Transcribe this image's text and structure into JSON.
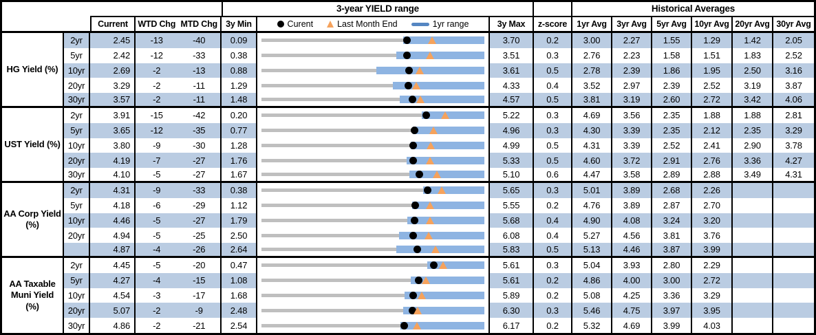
{
  "colors": {
    "border": "#000000",
    "stripe_blue": "#BACCE2",
    "bar_1yr_range": "#8EB4E2",
    "track_3yr_range": "#BFBFBF",
    "last_month_end_triangle": "#F5A25C",
    "legend_bar_glyph": "#5586C2",
    "text": "#000000",
    "background": "#FFFFFF"
  },
  "chart_data": {
    "type": "table",
    "embedded_chart": "per-row bullet/range chart: gray track spans 3y Min to 3y Max, blue bar = 1yr range, black dot = Current yield, orange triangle = Last Month End yield (values in %)",
    "headers": {
      "yield_range": "3-year YIELD range",
      "historical_averages": "Historical Averages"
    },
    "columns": {
      "current": "Current",
      "wtd_chg": "WTD Chg",
      "mtd_chg": "MTD Chg",
      "min_3y": "3y Min",
      "max_3y": "3y Max",
      "z_score": "z-score",
      "averages": [
        "1yr Avg",
        "3yr Avg",
        "5yr Avg",
        "10yr Avg",
        "20yr Avg",
        "30yr Avg"
      ]
    },
    "legend": {
      "current": "Curent",
      "last_month_end": "Last Month End",
      "range_1yr": "1yr range"
    },
    "sections": [
      {
        "label": "HG Yield (%)",
        "rows": [
          {
            "tenor": "2yr",
            "current": "2.45",
            "wtd_chg": "-13",
            "mtd_chg": "-40",
            "min_3y": "0.09",
            "max_3y": "3.70",
            "z_score": "0.2",
            "averages": [
              "3.00",
              "2.27",
              "1.55",
              "1.29",
              "1.42",
              "2.05"
            ],
            "last_month_end": 2.85,
            "range_1yr": [
              2.38,
              3.7
            ]
          },
          {
            "tenor": "5yr",
            "current": "2.42",
            "wtd_chg": "-12",
            "mtd_chg": "-33",
            "min_3y": "0.38",
            "max_3y": "3.51",
            "z_score": "0.3",
            "averages": [
              "2.76",
              "2.23",
              "1.58",
              "1.51",
              "1.83",
              "2.52"
            ],
            "last_month_end": 2.75,
            "range_1yr": [
              2.27,
              3.51
            ]
          },
          {
            "tenor": "10yr",
            "current": "2.69",
            "wtd_chg": "-2",
            "mtd_chg": "-13",
            "min_3y": "0.88",
            "max_3y": "3.61",
            "z_score": "0.5",
            "averages": [
              "2.78",
              "2.39",
              "1.86",
              "1.95",
              "2.50",
              "3.16"
            ],
            "last_month_end": 2.82,
            "range_1yr": [
              2.29,
              3.61
            ]
          },
          {
            "tenor": "20yr",
            "current": "3.29",
            "wtd_chg": "-2",
            "mtd_chg": "-11",
            "min_3y": "1.29",
            "max_3y": "4.33",
            "z_score": "0.4",
            "averages": [
              "3.52",
              "2.97",
              "2.39",
              "2.52",
              "3.19",
              "3.87"
            ],
            "last_month_end": 3.4,
            "range_1yr": [
              3.08,
              4.33
            ]
          },
          {
            "tenor": "30yr",
            "current": "3.57",
            "wtd_chg": "-2",
            "mtd_chg": "-11",
            "min_3y": "1.48",
            "max_3y": "4.57",
            "z_score": "0.5",
            "averages": [
              "3.81",
              "3.19",
              "2.60",
              "2.72",
              "3.42",
              "4.06"
            ],
            "last_month_end": 3.68,
            "range_1yr": [
              3.4,
              4.57
            ]
          }
        ]
      },
      {
        "label": "UST Yield (%)",
        "rows": [
          {
            "tenor": "2yr",
            "current": "3.91",
            "wtd_chg": "-15",
            "mtd_chg": "-42",
            "min_3y": "0.20",
            "max_3y": "5.22",
            "z_score": "0.3",
            "averages": [
              "4.69",
              "3.56",
              "2.35",
              "1.88",
              "1.88",
              "2.81"
            ],
            "last_month_end": 4.33,
            "range_1yr": [
              3.81,
              5.22
            ]
          },
          {
            "tenor": "5yr",
            "current": "3.65",
            "wtd_chg": "-12",
            "mtd_chg": "-35",
            "min_3y": "0.77",
            "max_3y": "4.96",
            "z_score": "0.3",
            "averages": [
              "4.30",
              "3.39",
              "2.35",
              "2.12",
              "2.35",
              "3.29"
            ],
            "last_month_end": 4.0,
            "range_1yr": [
              3.62,
              4.96
            ]
          },
          {
            "tenor": "10yr",
            "current": "3.80",
            "wtd_chg": "-9",
            "mtd_chg": "-30",
            "min_3y": "1.28",
            "max_3y": "4.99",
            "z_score": "0.5",
            "averages": [
              "4.31",
              "3.39",
              "2.52",
              "2.41",
              "2.90",
              "3.78"
            ],
            "last_month_end": 4.1,
            "range_1yr": [
              3.77,
              4.99
            ]
          },
          {
            "tenor": "20yr",
            "current": "4.19",
            "wtd_chg": "-7",
            "mtd_chg": "-27",
            "min_3y": "1.76",
            "max_3y": "5.33",
            "z_score": "0.5",
            "averages": [
              "4.60",
              "3.72",
              "2.91",
              "2.76",
              "3.36",
              "4.27"
            ],
            "last_month_end": 4.46,
            "range_1yr": [
              4.09,
              5.33
            ]
          },
          {
            "tenor": "30yr",
            "current": "4.10",
            "wtd_chg": "-5",
            "mtd_chg": "-27",
            "min_3y": "1.67",
            "max_3y": "5.10",
            "z_score": "0.6",
            "averages": [
              "4.47",
              "3.58",
              "2.89",
              "2.88",
              "3.49",
              "4.31"
            ],
            "last_month_end": 4.37,
            "range_1yr": [
              3.95,
              5.1
            ]
          }
        ]
      },
      {
        "label": "AA Corp Yield (%)",
        "rows": [
          {
            "tenor": "2yr",
            "current": "4.31",
            "wtd_chg": "-9",
            "mtd_chg": "-33",
            "min_3y": "0.38",
            "max_3y": "5.65",
            "z_score": "0.3",
            "averages": [
              "5.01",
              "3.89",
              "2.68",
              "2.26",
              "",
              ""
            ],
            "last_month_end": 4.64,
            "range_1yr": [
              4.21,
              5.65
            ]
          },
          {
            "tenor": "5yr",
            "current": "4.18",
            "wtd_chg": "-6",
            "mtd_chg": "-29",
            "min_3y": "1.12",
            "max_3y": "5.55",
            "z_score": "0.2",
            "averages": [
              "4.76",
              "3.89",
              "2.87",
              "2.70",
              "",
              ""
            ],
            "last_month_end": 4.47,
            "range_1yr": [
              4.12,
              5.55
            ]
          },
          {
            "tenor": "10yr",
            "current": "4.46",
            "wtd_chg": "-5",
            "mtd_chg": "-27",
            "min_3y": "1.79",
            "max_3y": "5.68",
            "z_score": "0.4",
            "averages": [
              "4.90",
              "4.08",
              "3.24",
              "3.20",
              "",
              ""
            ],
            "last_month_end": 4.73,
            "range_1yr": [
              4.33,
              5.68
            ]
          },
          {
            "tenor": "20yr",
            "current": "4.94",
            "wtd_chg": "-5",
            "mtd_chg": "-25",
            "min_3y": "2.50",
            "max_3y": "6.08",
            "z_score": "0.4",
            "averages": [
              "5.27",
              "4.56",
              "3.81",
              "3.76",
              "",
              ""
            ],
            "last_month_end": 5.19,
            "range_1yr": [
              4.71,
              6.08
            ]
          },
          {
            "tenor": "",
            "current": "4.87",
            "wtd_chg": "-4",
            "mtd_chg": "-26",
            "min_3y": "2.64",
            "max_3y": "5.83",
            "z_score": "0.5",
            "averages": [
              "5.13",
              "4.46",
              "3.87",
              "3.99",
              "",
              ""
            ],
            "last_month_end": 5.13,
            "range_1yr": [
              4.57,
              5.83
            ]
          }
        ]
      },
      {
        "label": "AA Taxable Muni Yield (%)",
        "rows": [
          {
            "tenor": "2yr",
            "current": "4.45",
            "wtd_chg": "-5",
            "mtd_chg": "-20",
            "min_3y": "0.47",
            "max_3y": "5.61",
            "z_score": "0.3",
            "averages": [
              "5.04",
              "3.93",
              "2.80",
              "2.29",
              "",
              ""
            ],
            "last_month_end": 4.65,
            "range_1yr": [
              4.3,
              5.61
            ]
          },
          {
            "tenor": "5yr",
            "current": "4.27",
            "wtd_chg": "-4",
            "mtd_chg": "-15",
            "min_3y": "1.08",
            "max_3y": "5.61",
            "z_score": "0.2",
            "averages": [
              "4.86",
              "4.00",
              "3.00",
              "2.72",
              "",
              ""
            ],
            "last_month_end": 4.42,
            "range_1yr": [
              4.12,
              5.61
            ]
          },
          {
            "tenor": "10yr",
            "current": "4.54",
            "wtd_chg": "-3",
            "mtd_chg": "-17",
            "min_3y": "1.68",
            "max_3y": "5.89",
            "z_score": "0.2",
            "averages": [
              "5.08",
              "4.25",
              "3.36",
              "3.29",
              "",
              ""
            ],
            "last_month_end": 4.71,
            "range_1yr": [
              4.38,
              5.89
            ]
          },
          {
            "tenor": "20yr",
            "current": "5.07",
            "wtd_chg": "-2",
            "mtd_chg": "-9",
            "min_3y": "2.48",
            "max_3y": "6.30",
            "z_score": "0.3",
            "averages": [
              "5.46",
              "4.75",
              "3.97",
              "3.95",
              "",
              ""
            ],
            "last_month_end": 5.16,
            "range_1yr": [
              4.91,
              6.3
            ]
          },
          {
            "tenor": "30yr",
            "current": "4.86",
            "wtd_chg": "-2",
            "mtd_chg": "-21",
            "min_3y": "2.54",
            "max_3y": "6.17",
            "z_score": "0.2",
            "averages": [
              "5.32",
              "4.69",
              "3.99",
              "4.03",
              "",
              ""
            ],
            "last_month_end": 5.07,
            "range_1yr": [
              4.8,
              6.17
            ]
          }
        ]
      }
    ]
  }
}
